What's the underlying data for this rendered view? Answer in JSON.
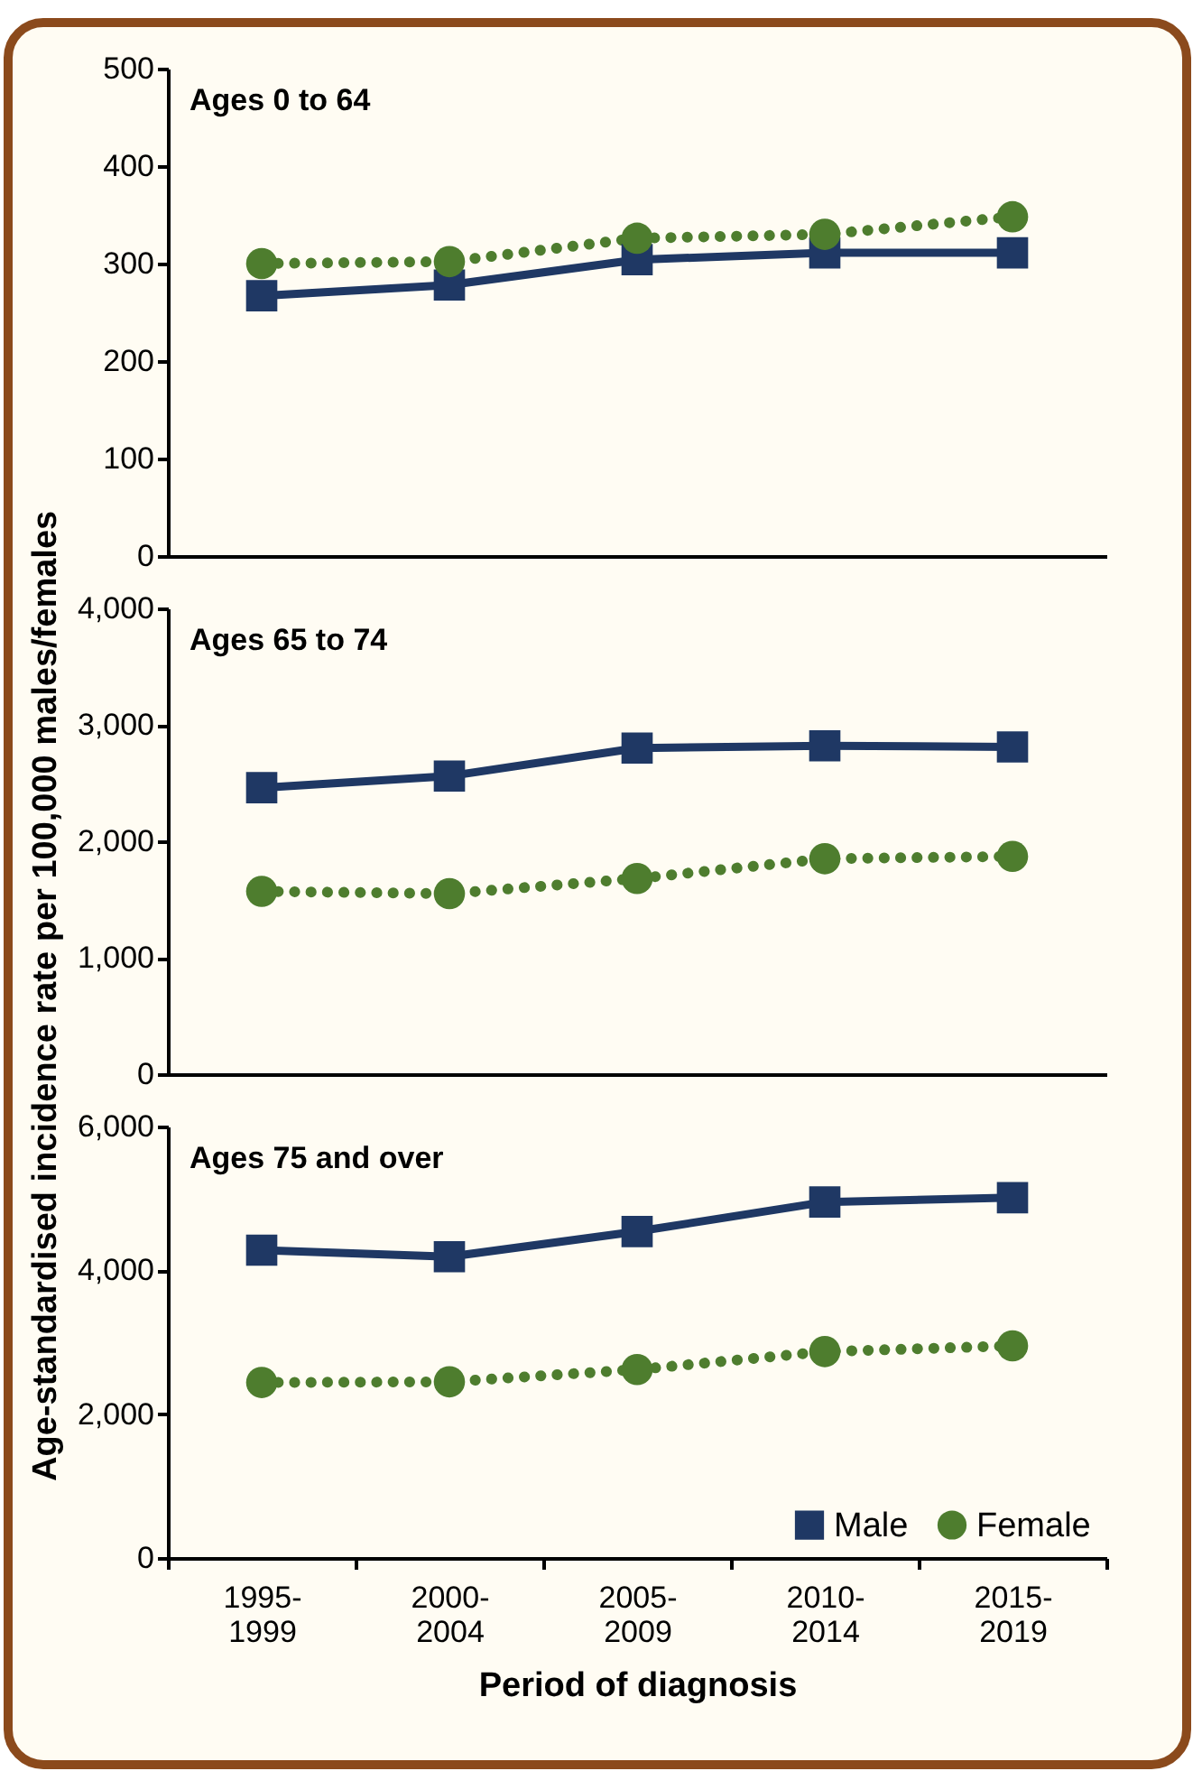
{
  "chart_data": [
    {
      "type": "line",
      "title": "Ages 0 to 64",
      "categories": [
        null,
        null,
        null,
        null,
        null
      ],
      "ylim": [
        0,
        500
      ],
      "yticks": [
        0,
        100,
        200,
        300,
        400,
        500
      ],
      "tick_labels": "y",
      "grid": false,
      "series": [
        {
          "color": "#1f3864",
          "marker": "square",
          "line_style": "solid",
          "values": [
            267,
            278,
            304,
            311,
            311
          ]
        },
        {
          "color": "#4e7d2e",
          "marker": "circle",
          "line_style": "dotted",
          "values": [
            300,
            302,
            326,
            330,
            348
          ]
        }
      ]
    },
    {
      "type": "line",
      "title": "Ages 65 to 74",
      "ylabel": "Age-standardised incidence rate per 100,000 males/females",
      "categories": [
        null,
        null,
        null,
        null,
        null
      ],
      "ylim": [
        0,
        4000
      ],
      "yticks": [
        0,
        {
          "value": 1000,
          "label": "1,000"
        },
        {
          "value": 2000,
          "label": "2,000"
        },
        {
          "value": 3000,
          "label": "3,000"
        },
        {
          "value": 4000,
          "label": "4,000"
        }
      ],
      "tick_labels": "y",
      "grid": false,
      "series": [
        {
          "color": "#1f3864",
          "marker": "square",
          "line_style": "solid",
          "values": [
            2460,
            2560,
            2800,
            2820,
            2810
          ]
        },
        {
          "color": "#4e7d2e",
          "marker": "circle",
          "line_style": "dotted",
          "values": [
            1570,
            1550,
            1680,
            1850,
            1870
          ]
        }
      ]
    },
    {
      "type": "line",
      "title": "Ages 75 and over",
      "xlabel": "Period of diagnosis",
      "categories": [
        "1995-1999",
        "2000-2004",
        "2005-2009",
        "2010-2014",
        "2015-2019"
      ],
      "ylim": [
        0,
        6000
      ],
      "yticks": [
        0,
        {
          "value": 2000,
          "label": "2,000"
        },
        {
          "value": 4000,
          "label": "4,000"
        },
        {
          "value": 6000,
          "label": "6,000"
        }
      ],
      "legend": "bottom right",
      "grid": false,
      "series": [
        {
          "name": "Male",
          "color": "#1f3864",
          "marker": "square",
          "line_style": "solid",
          "values": [
            4280,
            4190,
            4540,
            4950,
            5010
          ]
        },
        {
          "name": "Female",
          "color": "#4e7d2e",
          "marker": "circle",
          "line_style": "dotted",
          "values": [
            2440,
            2450,
            2620,
            2870,
            2950
          ]
        }
      ]
    }
  ]
}
